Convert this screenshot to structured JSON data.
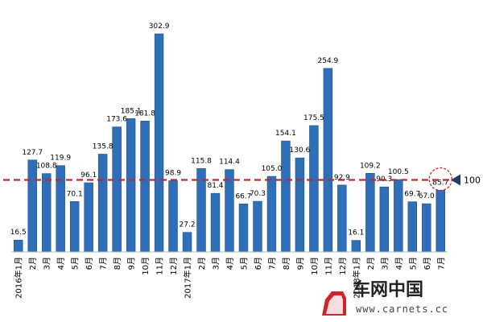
{
  "chart_data": {
    "type": "bar",
    "categories": [
      "2016年1月",
      "2月",
      "3月",
      "4月",
      "5月",
      "6月",
      "7月",
      "8月",
      "9月",
      "10月",
      "11月",
      "12月",
      "2017年1月",
      "2月",
      "3月",
      "4月",
      "5月",
      "6月",
      "7月",
      "8月",
      "9月",
      "10月",
      "11月",
      "12月",
      "2018年1月",
      "2月",
      "3月",
      "4月",
      "5月",
      "6月",
      "7月"
    ],
    "values": [
      16.5,
      127.7,
      108.8,
      119.9,
      70.1,
      96.1,
      135.8,
      173.6,
      185.1,
      181.8,
      302.9,
      98.9,
      27.2,
      115.8,
      81.4,
      114.4,
      66.7,
      70.3,
      105.0,
      154.1,
      130.6,
      175.5,
      254.9,
      92.9,
      16.1,
      109.2,
      90.3,
      100.5,
      69.7,
      67.0,
      85.7
    ],
    "value_labels": [
      "16.5",
      "127.7",
      "108.8",
      "119.9",
      "70.1",
      "96.1",
      "135.8",
      "173.6",
      "185.1",
      "181.8",
      "302.9",
      "98.9",
      "27.2",
      "115.8",
      "81.4",
      "114.4",
      "66.7",
      "70.3",
      "105.0",
      "154.1",
      "130.6",
      "175.5",
      "254.9",
      "92.9",
      "16.1",
      "109.2",
      "90.3",
      "100.5",
      "69.7",
      "67.0",
      "85.7"
    ],
    "reference_line": {
      "value": 100,
      "label": "100"
    },
    "highlighted_index": 30,
    "ylim": [
      0,
      320
    ],
    "grid": false,
    "title": "",
    "xlabel": "",
    "ylabel": "",
    "colors": {
      "bar": "#2f6fb7",
      "bar_edge": "#1f4f88",
      "reference": "#c0282d",
      "marker": "#1f3f6a"
    }
  },
  "watermark": {
    "brand": "车网中国",
    "url": "www.carnets.cc"
  }
}
